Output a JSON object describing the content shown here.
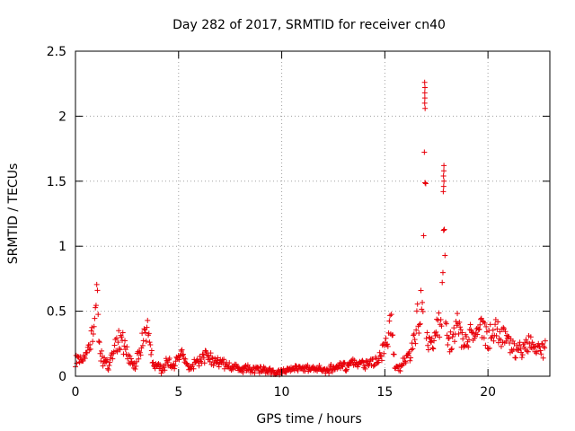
{
  "chart_data": {
    "type": "scatter",
    "title": "Day 282 of 2017, SRMTID for receiver cn40",
    "xlabel": "GPS time / hours",
    "ylabel": "SRMTID / TECUs",
    "xlim": [
      0,
      23
    ],
    "ylim": [
      0,
      2.5
    ],
    "xticks": [
      0,
      5,
      10,
      15,
      20
    ],
    "xtick_labels": [
      "0",
      "5",
      "10",
      "15",
      "20"
    ],
    "yticks": [
      0,
      0.5,
      1,
      1.5,
      2,
      2.5
    ],
    "ytick_labels": [
      "0",
      "0.5",
      "1",
      "1.5",
      "2",
      "2.5"
    ],
    "grid": true,
    "marker": "+",
    "colors": {
      "series": "#e8000a",
      "axes": "#000000",
      "grid": "#a0a0a0"
    },
    "series": [
      {
        "name": "cn40",
        "x_start": 0,
        "x_end": 22.8,
        "x_step": 0.0333,
        "y_profile": [
          [
            0,
            0.12
          ],
          [
            0.3,
            0.14
          ],
          [
            0.6,
            0.18
          ],
          [
            0.8,
            0.35
          ],
          [
            0.95,
            0.55
          ],
          [
            1.05,
            0.62
          ],
          [
            1.2,
            0.15
          ],
          [
            1.6,
            0.08
          ],
          [
            2.0,
            0.28
          ],
          [
            2.2,
            0.3
          ],
          [
            2.6,
            0.15
          ],
          [
            2.9,
            0.08
          ],
          [
            3.3,
            0.3
          ],
          [
            3.5,
            0.35
          ],
          [
            3.8,
            0.08
          ],
          [
            4.2,
            0.06
          ],
          [
            4.5,
            0.12
          ],
          [
            4.7,
            0.08
          ],
          [
            5.2,
            0.15
          ],
          [
            5.5,
            0.06
          ],
          [
            6.0,
            0.12
          ],
          [
            6.3,
            0.15
          ],
          [
            7.0,
            0.1
          ],
          [
            8.0,
            0.06
          ],
          [
            9.0,
            0.05
          ],
          [
            9.8,
            0.03
          ],
          [
            10.5,
            0.05
          ],
          [
            11.5,
            0.06
          ],
          [
            12.2,
            0.05
          ],
          [
            13.0,
            0.08
          ],
          [
            14.0,
            0.1
          ],
          [
            14.7,
            0.12
          ],
          [
            15.1,
            0.25
          ],
          [
            15.3,
            0.42
          ],
          [
            15.5,
            0.06
          ],
          [
            15.8,
            0.08
          ],
          [
            16.3,
            0.2
          ],
          [
            16.6,
            0.45
          ],
          [
            16.8,
            0.62
          ],
          [
            17.0,
            0.25
          ],
          [
            17.4,
            0.3
          ],
          [
            17.6,
            0.45
          ],
          [
            17.9,
            0.35
          ],
          [
            18.2,
            0.25
          ],
          [
            18.5,
            0.38
          ],
          [
            18.8,
            0.25
          ],
          [
            19.2,
            0.3
          ],
          [
            19.5,
            0.38
          ],
          [
            19.7,
            0.4
          ],
          [
            20.0,
            0.28
          ],
          [
            20.4,
            0.35
          ],
          [
            20.8,
            0.28
          ],
          [
            21.2,
            0.22
          ],
          [
            21.6,
            0.18
          ],
          [
            22.0,
            0.25
          ],
          [
            22.4,
            0.2
          ],
          [
            22.8,
            0.22
          ]
        ],
        "spikes": [
          {
            "x": [
              16.75,
              17.0
            ],
            "peak_x": 16.95,
            "peak_y": 2.26
          },
          {
            "x": [
              17.65,
              17.95
            ],
            "peak_x": 17.85,
            "peak_y": 1.62
          }
        ]
      }
    ]
  }
}
